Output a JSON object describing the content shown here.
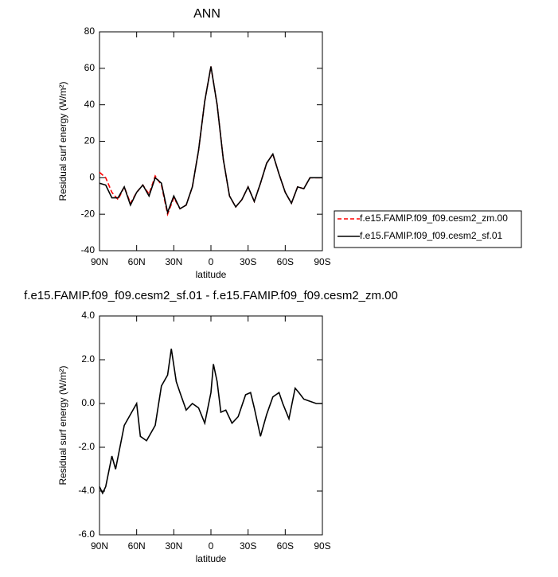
{
  "chart_data": [
    {
      "type": "line",
      "title": "ANN",
      "xlabel": "latitude",
      "ylabel": "Residual surf energy (W/m²)",
      "xlim": [
        90,
        -90
      ],
      "xticks": [
        {
          "value": 90,
          "label": "90N"
        },
        {
          "value": 60,
          "label": "60N"
        },
        {
          "value": 30,
          "label": "30N"
        },
        0,
        {
          "value": -30,
          "label": "30S"
        },
        {
          "value": -60,
          "label": "60S"
        },
        {
          "value": -90,
          "label": "90S"
        }
      ],
      "ylim": [
        -40,
        80
      ],
      "yticks": [
        -40,
        -20,
        0,
        20,
        40,
        60,
        80
      ],
      "legend": "right",
      "x": [
        90,
        85,
        80,
        75,
        70,
        65,
        60,
        55,
        50,
        45,
        40,
        35,
        30,
        25,
        20,
        15,
        10,
        5,
        0,
        -5,
        -10,
        -15,
        -20,
        -25,
        -30,
        -35,
        -40,
        -45,
        -50,
        -55,
        -60,
        -65,
        -70,
        -75,
        -80,
        -85,
        -90
      ],
      "series": [
        {
          "name": "f.e15.FAMIP.f09_f09.cesm2_zm.00",
          "color": "#ff0000",
          "style": "dashed",
          "values": [
            3,
            0,
            -8,
            -12,
            -5,
            -14,
            -8,
            -4,
            -9,
            1,
            -4,
            -20,
            -11,
            -17,
            -15,
            -5,
            15,
            42,
            61,
            40,
            10,
            -10,
            -16,
            -12,
            -5,
            -13,
            -3,
            8,
            13,
            2,
            -8,
            -14,
            -5,
            -6,
            0,
            0,
            0
          ]
        },
        {
          "name": "f.e15.FAMIP.f09_f09.cesm2_sf.01",
          "color": "#000000",
          "style": "solid",
          "values": [
            -3,
            -4,
            -11,
            -11,
            -5,
            -15,
            -8,
            -4,
            -10,
            0,
            -3,
            -19,
            -10,
            -17,
            -15,
            -5,
            15,
            42,
            61,
            40,
            10,
            -10,
            -16,
            -12,
            -5,
            -13,
            -3,
            8,
            13,
            2,
            -8,
            -14,
            -5,
            -6,
            0,
            0,
            0
          ]
        }
      ]
    },
    {
      "type": "line",
      "title": "f.e15.FAMIP.f09_f09.cesm2_sf.01 - f.e15.FAMIP.f09_f09.cesm2_zm.00",
      "xlabel": "latitude",
      "ylabel": "Residual surf energy (W/m²)",
      "xlim": [
        90,
        -90
      ],
      "xticks": [
        {
          "value": 90,
          "label": "90N"
        },
        {
          "value": 60,
          "label": "60N"
        },
        {
          "value": 30,
          "label": "30N"
        },
        0,
        {
          "value": -30,
          "label": "30S"
        },
        {
          "value": -60,
          "label": "60S"
        },
        {
          "value": -90,
          "label": "90S"
        }
      ],
      "ylim": [
        -6,
        4
      ],
      "yticks": [
        {
          "value": -6,
          "label": "-6.0"
        },
        {
          "value": -4,
          "label": "-4.0"
        },
        {
          "value": -2,
          "label": "-2.0"
        },
        {
          "value": 0,
          "label": "0.0"
        },
        {
          "value": 2,
          "label": "2.0"
        },
        {
          "value": 4,
          "label": "4.0"
        }
      ],
      "x": [
        90,
        87.5,
        85,
        80,
        77,
        70,
        65,
        60,
        57,
        52,
        45,
        40,
        35,
        32,
        28,
        25,
        20,
        15,
        10,
        5,
        0,
        -2,
        -5,
        -8,
        -12,
        -17,
        -22,
        -28,
        -32,
        -35,
        -40,
        -45,
        -50,
        -55,
        -58,
        -63,
        -68,
        -71,
        -75,
        -80,
        -85,
        -90
      ],
      "series": [
        {
          "color": "#000000",
          "style": "solid",
          "values": [
            -3.8,
            -4.1,
            -3.8,
            -2.4,
            -3.0,
            -1.0,
            -0.5,
            0,
            -1.5,
            -1.7,
            -1.0,
            0.8,
            1.3,
            2.5,
            1.0,
            0.5,
            -0.3,
            0,
            -0.2,
            -0.9,
            0.5,
            1.8,
            1.0,
            -0.4,
            -0.3,
            -0.9,
            -0.6,
            0.4,
            0.5,
            -0.2,
            -1.5,
            -0.5,
            0.3,
            0.5,
            0,
            -0.7,
            0.7,
            0.5,
            0.2,
            0.1,
            0,
            0
          ]
        }
      ]
    }
  ]
}
